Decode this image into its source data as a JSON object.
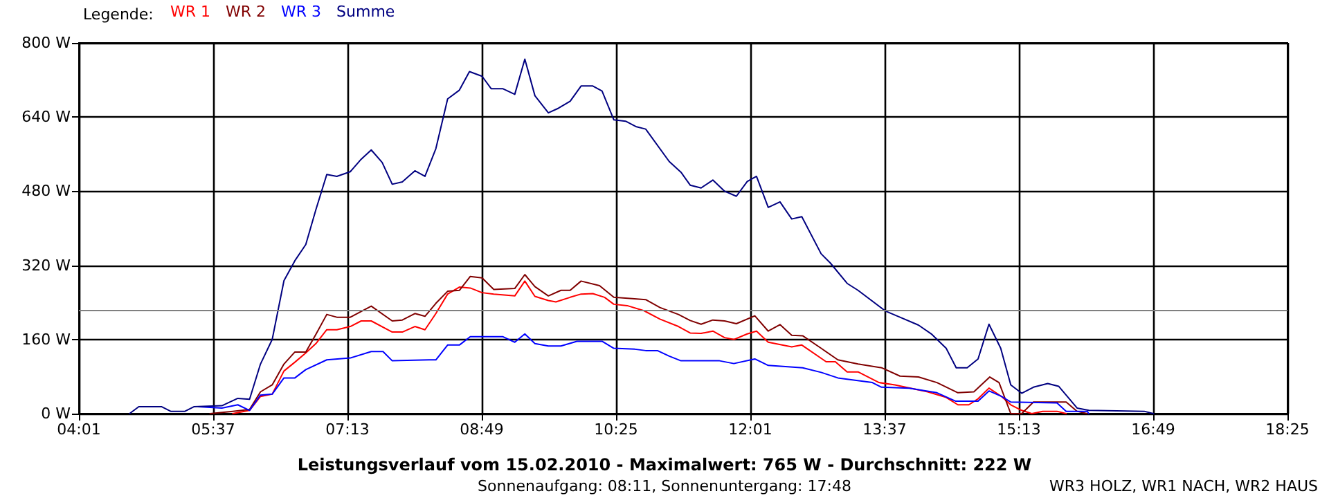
{
  "chart_data": {
    "type": "line",
    "title": "Leistungsverlauf vom 15.02.2010 - Maximalwert: 765 W - Durchschnitt: 222 W",
    "subtitle": "Sonnenaufgang: 08:11, Sonnenuntergang: 17:48",
    "legend_title": "Legende:",
    "annotations": [
      "WR3 HOLZ, WR1 NACH, WR2 HAUS"
    ],
    "xlim": [
      4.0167,
      18.4167
    ],
    "xticks": [
      {
        "value": 4.0167,
        "label": "04:01"
      },
      {
        "value": 5.6167,
        "label": "05:37"
      },
      {
        "value": 7.2167,
        "label": "07:13"
      },
      {
        "value": 8.8167,
        "label": "08:49"
      },
      {
        "value": 10.4167,
        "label": "10:25"
      },
      {
        "value": 12.0167,
        "label": "12:01"
      },
      {
        "value": 13.6167,
        "label": "13:37"
      },
      {
        "value": 15.2167,
        "label": "15:13"
      },
      {
        "value": 16.8167,
        "label": "16:49"
      },
      {
        "value": 18.4167,
        "label": "18:25"
      }
    ],
    "ylim": [
      0,
      800
    ],
    "yticks": [
      {
        "value": 0,
        "label": "0 W"
      },
      {
        "value": 160,
        "label": "160 W"
      },
      {
        "value": 320,
        "label": "320 W"
      },
      {
        "value": 480,
        "label": "480 W"
      },
      {
        "value": 640,
        "label": "640 W"
      },
      {
        "value": 800,
        "label": "800 W"
      }
    ],
    "grid": true,
    "legend": "top left",
    "marker": "none",
    "line_style": "solid",
    "ref_lines": [
      {
        "axis": "y",
        "value": 222,
        "color": "#808080"
      }
    ],
    "series": [
      {
        "name": "WR 1",
        "color": "#ff0000",
        "x": [
          5.85,
          6.05,
          6.18,
          6.32,
          6.46,
          6.59,
          6.72,
          6.84,
          6.97,
          7.09,
          7.25,
          7.38,
          7.5,
          7.75,
          7.87,
          8.02,
          8.14,
          8.27,
          8.41,
          8.55,
          8.68,
          8.82,
          8.96,
          9.21,
          9.33,
          9.45,
          9.61,
          9.7,
          9.87,
          10.0,
          10.14,
          10.28,
          10.39,
          10.55,
          10.75,
          10.94,
          11.16,
          11.3,
          11.43,
          11.57,
          11.71,
          11.82,
          11.98,
          12.09,
          12.23,
          12.51,
          12.63,
          12.92,
          13.03,
          13.17,
          13.3,
          13.55,
          13.74,
          14.13,
          14.35,
          14.49,
          14.62,
          14.73,
          14.86,
          15.01,
          15.12,
          15.25,
          15.37,
          15.5,
          15.67,
          15.78
        ],
        "values": [
          0,
          7,
          37,
          42,
          92,
          111,
          131,
          151,
          181,
          181,
          188,
          200,
          200,
          176,
          176,
          188,
          181,
          216,
          258,
          273,
          271,
          261,
          258,
          254,
          286,
          253,
          244,
          241,
          251,
          258,
          259,
          251,
          236,
          233,
          222,
          204,
          188,
          174,
          173,
          178,
          164,
          160,
          172,
          178,
          154,
          144,
          148,
          112,
          112,
          90,
          90,
          67,
          62,
          47,
          35,
          19,
          19,
          32,
          55,
          37,
          19,
          7,
          0,
          5,
          5,
          0
        ]
      },
      {
        "name": "WR 2",
        "color": "#800000",
        "x": [
          5.58,
          5.85,
          6.05,
          6.18,
          6.32,
          6.46,
          6.59,
          6.72,
          6.84,
          6.97,
          7.09,
          7.25,
          7.5,
          7.75,
          7.87,
          8.02,
          8.14,
          8.27,
          8.41,
          8.55,
          8.68,
          8.82,
          8.96,
          9.21,
          9.33,
          9.45,
          9.61,
          9.76,
          9.87,
          10.0,
          10.22,
          10.39,
          10.61,
          10.77,
          10.94,
          11.16,
          11.3,
          11.43,
          11.57,
          11.71,
          11.85,
          12.07,
          12.23,
          12.37,
          12.51,
          12.64,
          12.86,
          13.06,
          13.3,
          13.58,
          13.8,
          14.02,
          14.24,
          14.49,
          14.68,
          14.87,
          14.98,
          15.12,
          15.25,
          15.39,
          15.78,
          15.91,
          16.03
        ],
        "values": [
          0,
          5,
          9,
          47,
          62,
          107,
          133,
          133,
          171,
          214,
          208,
          208,
          232,
          200,
          202,
          216,
          210,
          238,
          264,
          266,
          296,
          293,
          268,
          270,
          300,
          274,
          254,
          266,
          266,
          286,
          276,
          251,
          248,
          246,
          229,
          214,
          201,
          193,
          202,
          200,
          194,
          211,
          178,
          192,
          169,
          168,
          141,
          116,
          107,
          99,
          81,
          79,
          67,
          45,
          47,
          79,
          67,
          0,
          0,
          25,
          25,
          5,
          0
        ]
      },
      {
        "name": "WR 3",
        "color": "#0000ff",
        "x": [
          5.44,
          5.72,
          5.91,
          6.05,
          6.18,
          6.32,
          6.46,
          6.59,
          6.72,
          6.97,
          7.25,
          7.5,
          7.64,
          7.75,
          8.19,
          8.27,
          8.41,
          8.55,
          8.68,
          9.07,
          9.21,
          9.33,
          9.45,
          9.61,
          9.76,
          9.95,
          10.25,
          10.39,
          10.64,
          10.77,
          10.91,
          11.05,
          11.19,
          11.49,
          11.65,
          11.82,
          12.07,
          12.23,
          12.64,
          12.86,
          13.06,
          13.47,
          13.58,
          13.91,
          14.24,
          14.46,
          14.73,
          14.86,
          15.01,
          15.12,
          15.67,
          15.78,
          16.03,
          16.05
        ],
        "values": [
          15,
          12,
          19,
          7,
          40,
          42,
          77,
          77,
          95,
          116,
          120,
          134,
          134,
          114,
          116,
          116,
          148,
          148,
          166,
          166,
          154,
          172,
          151,
          146,
          146,
          156,
          156,
          141,
          139,
          136,
          136,
          124,
          114,
          114,
          114,
          108,
          118,
          104,
          99,
          89,
          77,
          67,
          57,
          55,
          45,
          27,
          27,
          49,
          37,
          25,
          23,
          5,
          5,
          0
        ]
      },
      {
        "name": "Summe",
        "color": "#000080",
        "x": [
          4.62,
          4.73,
          5.0,
          5.11,
          5.28,
          5.39,
          5.72,
          5.91,
          6.05,
          6.18,
          6.32,
          6.46,
          6.59,
          6.72,
          6.84,
          6.97,
          7.09,
          7.25,
          7.38,
          7.5,
          7.63,
          7.75,
          7.87,
          8.02,
          8.14,
          8.27,
          8.41,
          8.55,
          8.67,
          8.82,
          8.93,
          9.07,
          9.21,
          9.33,
          9.45,
          9.61,
          9.73,
          9.87,
          10.0,
          10.14,
          10.25,
          10.39,
          10.53,
          10.66,
          10.77,
          11.05,
          11.19,
          11.3,
          11.43,
          11.57,
          11.71,
          11.85,
          11.98,
          12.09,
          12.23,
          12.37,
          12.51,
          12.63,
          12.86,
          12.97,
          13.17,
          13.3,
          13.63,
          13.8,
          14.02,
          14.18,
          14.35,
          14.47,
          14.6,
          14.73,
          14.86,
          15.0,
          15.12,
          15.25,
          15.39,
          15.56,
          15.69,
          15.91,
          16.05,
          16.71,
          16.82
        ],
        "values": [
          0,
          15,
          15,
          5,
          5,
          15,
          17,
          33,
          31,
          107,
          160,
          287,
          330,
          365,
          440,
          516,
          512,
          522,
          549,
          569,
          542,
          495,
          500,
          524,
          512,
          572,
          679,
          698,
          738,
          728,
          701,
          701,
          689,
          765,
          686,
          649,
          659,
          674,
          707,
          707,
          696,
          634,
          631,
          619,
          614,
          544,
          521,
          493,
          487,
          504,
          480,
          469,
          501,
          512,
          445,
          457,
          420,
          425,
          345,
          325,
          281,
          266,
          221,
          208,
          191,
          171,
          141,
          99,
          99,
          118,
          193,
          141,
          62,
          44,
          57,
          65,
          59,
          12,
          7,
          5,
          0
        ]
      }
    ]
  }
}
